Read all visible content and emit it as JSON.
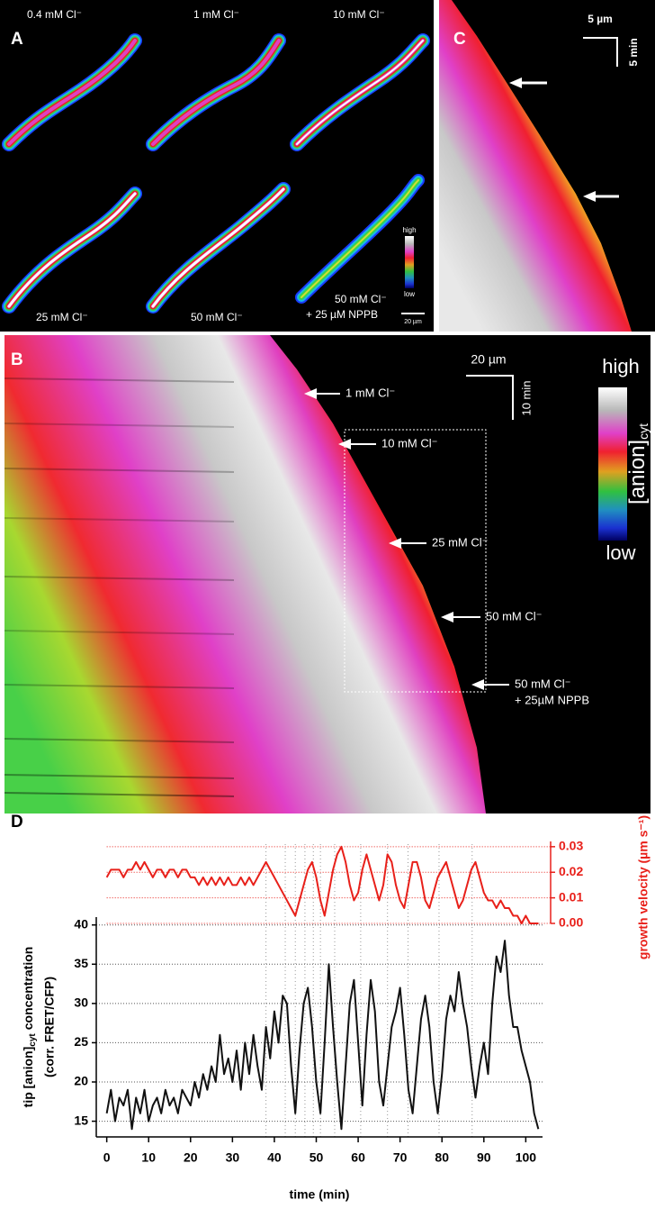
{
  "panels": {
    "A": {
      "label": "A",
      "conditions": [
        "0.4 mM Cl⁻",
        "1 mM Cl⁻",
        "10 mM Cl⁻",
        "25 mM Cl⁻",
        "50 mM Cl⁻",
        "50 mM Cl⁻"
      ],
      "nppb": "+ 25 µM NPPB",
      "colorbar_high": "high",
      "colorbar_low": "low",
      "scale_bar": "20 µm"
    },
    "B": {
      "label": "B",
      "arrows": [
        "1 mM Cl⁻",
        "10 mM Cl⁻",
        "25 mM Cl⁻",
        "50 mM Cl⁻",
        "50 mM Cl⁻"
      ],
      "nppb": "+ 25µM NPPB",
      "scale_x": "20 µm",
      "scale_y": "10 min",
      "colorbar_high": "high",
      "colorbar_title": "[anion]",
      "colorbar_subscript": "cyt",
      "colorbar_low": "low"
    },
    "C": {
      "label": "C",
      "scale_x": "5 µm",
      "scale_y": "5 min"
    },
    "D": {
      "label": "D"
    }
  },
  "chart_data": {
    "type": "line",
    "x_label": "time (min)",
    "y_label_a": "tip [anion]",
    "y_label_sub": "cyt",
    "y_label_b": "concentration",
    "y_label_2": "(corr. FRET/CFP)",
    "y2_label": "growth velocity (µm s⁻¹)",
    "xlim": [
      -2.5,
      104
    ],
    "xticks": [
      0,
      10,
      20,
      30,
      40,
      50,
      60,
      70,
      80,
      90,
      100
    ],
    "ylim": [
      13,
      41
    ],
    "yticks": [
      15,
      20,
      25,
      30,
      35,
      40
    ],
    "y2lim": [
      0,
      0.031
    ],
    "y2ticks": [
      {
        "value": 0,
        "label": "0.00"
      },
      0.01,
      0.02,
      0.03
    ],
    "grid": true,
    "reference_lines_x": [
      38,
      42.6,
      45,
      47.3,
      49.3,
      51,
      54.4,
      60.6,
      67,
      71.9,
      79.3,
      87.2
    ],
    "x": [
      0,
      1,
      2,
      3,
      4,
      5,
      6,
      7,
      8,
      9,
      10,
      11,
      12,
      13,
      14,
      15,
      16,
      17,
      18,
      19,
      20,
      21,
      22,
      23,
      24,
      25,
      26,
      27,
      28,
      29,
      30,
      31,
      32,
      33,
      34,
      35,
      36,
      37,
      38,
      39,
      40,
      41,
      42,
      43,
      44,
      45,
      46,
      47,
      48,
      49,
      50,
      51,
      52,
      53,
      54,
      55,
      56,
      57,
      58,
      59,
      60,
      61,
      62,
      63,
      64,
      65,
      66,
      67,
      68,
      69,
      70,
      71,
      72,
      73,
      74,
      75,
      76,
      77,
      78,
      79,
      80,
      81,
      82,
      83,
      84,
      85,
      86,
      87,
      88,
      89,
      90,
      91,
      92,
      93,
      94,
      95,
      96,
      97,
      98,
      99,
      100,
      101,
      102,
      103
    ],
    "series": [
      {
        "color": "#e8201a",
        "axis": "y2",
        "values": [
          0.018,
          0.021,
          0.021,
          0.021,
          0.018,
          0.021,
          0.021,
          0.024,
          0.021,
          0.024,
          0.021,
          0.018,
          0.021,
          0.021,
          0.018,
          0.021,
          0.021,
          0.018,
          0.021,
          0.021,
          0.018,
          0.018,
          0.015,
          0.018,
          0.015,
          0.018,
          0.015,
          0.018,
          0.015,
          0.018,
          0.015,
          0.015,
          0.018,
          0.015,
          0.018,
          0.015,
          0.018,
          0.021,
          0.024,
          0.021,
          0.018,
          0.015,
          0.012,
          0.009,
          0.006,
          0.003,
          0.009,
          0.015,
          0.021,
          0.024,
          0.018,
          0.009,
          0.003,
          0.012,
          0.021,
          0.027,
          0.03,
          0.024,
          0.015,
          0.009,
          0.012,
          0.021,
          0.027,
          0.021,
          0.015,
          0.009,
          0.015,
          0.027,
          0.024,
          0.015,
          0.009,
          0.006,
          0.015,
          0.024,
          0.024,
          0.018,
          0.009,
          0.006,
          0.012,
          0.018,
          0.021,
          0.024,
          0.018,
          0.012,
          0.006,
          0.009,
          0.015,
          0.021,
          0.024,
          0.018,
          0.012,
          0.009,
          0.009,
          0.006,
          0.009,
          0.006,
          0.006,
          0.003,
          0.003,
          0.0,
          0.003,
          0.0,
          0.0,
          0.0
        ]
      },
      {
        "color": "#111111",
        "axis": "y",
        "values": [
          16,
          19,
          15,
          18,
          17,
          19,
          14,
          18,
          16,
          19,
          15,
          17,
          18,
          16,
          19,
          17,
          18,
          16,
          19,
          18,
          17,
          20,
          18,
          21,
          19,
          22,
          20,
          26,
          21,
          23,
          20,
          24,
          19,
          25,
          21,
          26,
          22,
          19,
          27,
          23,
          29,
          25,
          31,
          30,
          22,
          16,
          24,
          30,
          32,
          27,
          20,
          16,
          25,
          35,
          27,
          20,
          14,
          22,
          30,
          33,
          25,
          17,
          26,
          33,
          29,
          20,
          17,
          22,
          27,
          29,
          32,
          26,
          19,
          16,
          22,
          28,
          31,
          27,
          20,
          16,
          21,
          28,
          31,
          29,
          34,
          30,
          27,
          22,
          18,
          22,
          25,
          21,
          30,
          36,
          34,
          38,
          31,
          27,
          27,
          24,
          22,
          20,
          16,
          14
        ]
      }
    ]
  }
}
